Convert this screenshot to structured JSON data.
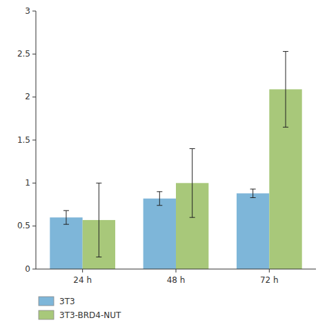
{
  "chart_data": {
    "type": "bar",
    "categories": [
      "24 h",
      "48 h",
      "72 h"
    ],
    "series": [
      {
        "name": "3T3",
        "color": "#7eb6d9",
        "values": [
          0.6,
          0.82,
          0.88
        ],
        "errors": [
          0.08,
          0.08,
          0.05
        ]
      },
      {
        "name": "3T3-BRD4-NUT",
        "color": "#a8c87a",
        "values": [
          0.57,
          1.0,
          2.09
        ],
        "errors": [
          0.43,
          0.4,
          0.44
        ]
      }
    ],
    "ylim": [
      0,
      3
    ],
    "yticks": [
      0,
      0.5,
      1,
      1.5,
      2,
      2.5,
      3
    ],
    "grid": false,
    "legend": "bottom"
  }
}
